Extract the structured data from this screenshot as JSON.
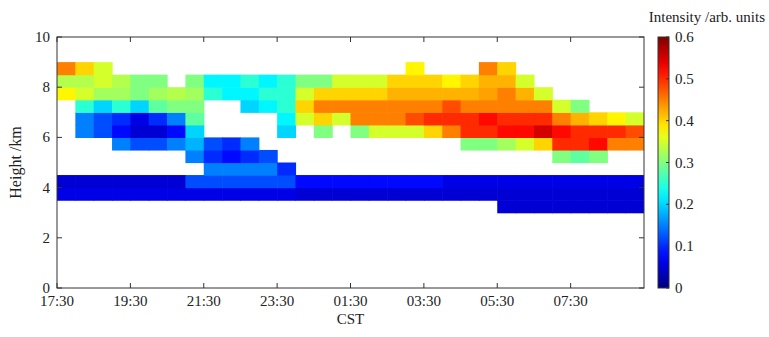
{
  "chart_data": {
    "type": "heatmap",
    "x_label": "CST",
    "y_label": "Height /km",
    "xlim": [
      0,
      16
    ],
    "xticks": [
      {
        "value": 0,
        "label": "17:30"
      },
      {
        "value": 2,
        "label": "19:30"
      },
      {
        "value": 4,
        "label": "21:30"
      },
      {
        "value": 6,
        "label": "23:30"
      },
      {
        "value": 8,
        "label": "01:30"
      },
      {
        "value": 10,
        "label": "03:30"
      },
      {
        "value": 12,
        "label": "05:30"
      },
      {
        "value": 14,
        "label": "07:30"
      }
    ],
    "ylim": [
      0,
      10
    ],
    "yticks": [
      0,
      2,
      4,
      6,
      8,
      10
    ],
    "xbins": [
      0,
      0.5,
      1,
      1.5,
      2,
      2.5,
      3,
      3.5,
      4,
      4.5,
      5,
      5.5,
      6,
      6.5,
      7,
      7.5,
      8,
      8.5,
      9,
      9.5,
      10,
      10.5,
      11,
      11.5,
      12,
      12.5,
      13,
      13.5,
      14,
      14.5,
      15,
      15.5,
      16
    ],
    "ybins": [
      3,
      3.5,
      4,
      4.5,
      5,
      5.5,
      6,
      6.5,
      7,
      7.5,
      8,
      8.5,
      9
    ],
    "cells": [
      [
        null,
        null,
        null,
        null,
        null,
        null,
        null,
        null,
        null,
        null,
        null,
        null,
        null,
        null,
        null,
        null,
        null,
        null,
        null,
        null,
        null,
        null,
        null,
        null,
        0.05,
        0.05,
        0.05,
        0.05,
        0.05,
        0.05,
        0.05,
        0.05
      ],
      [
        0.06,
        0.06,
        0.06,
        0.06,
        0.06,
        0.06,
        0.06,
        0.06,
        0.06,
        0.06,
        0.06,
        0.06,
        0.06,
        0.05,
        0.05,
        0.05,
        0.05,
        0.05,
        0.05,
        0.05,
        0.05,
        0.05,
        0.05,
        0.05,
        0.05,
        0.05,
        0.05,
        0.05,
        0.05,
        0.05,
        0.05,
        0.05
      ],
      [
        0.05,
        0.05,
        0.05,
        0.05,
        0.05,
        0.05,
        0.05,
        0.12,
        0.12,
        0.12,
        0.12,
        0.12,
        0.12,
        0.08,
        0.08,
        0.08,
        0.08,
        0.08,
        0.08,
        0.08,
        0.08,
        0.06,
        0.06,
        0.06,
        0.06,
        0.06,
        0.06,
        0.06,
        0.06,
        0.06,
        0.06,
        0.06
      ],
      [
        null,
        null,
        null,
        null,
        null,
        null,
        null,
        null,
        0.15,
        0.15,
        0.15,
        0.15,
        0.1,
        null,
        null,
        null,
        null,
        null,
        null,
        null,
        null,
        null,
        null,
        null,
        null,
        null,
        null,
        null,
        null,
        null,
        null,
        null
      ],
      [
        null,
        null,
        null,
        null,
        null,
        null,
        null,
        0.15,
        0.1,
        0.08,
        0.1,
        0.12,
        null,
        null,
        null,
        null,
        null,
        null,
        null,
        null,
        null,
        null,
        null,
        null,
        null,
        null,
        null,
        0.3,
        0.28,
        0.3,
        null,
        null
      ],
      [
        null,
        null,
        null,
        0.15,
        0.12,
        0.12,
        0.15,
        0.18,
        0.12,
        0.1,
        0.15,
        null,
        null,
        null,
        null,
        null,
        null,
        null,
        null,
        null,
        null,
        null,
        0.3,
        0.3,
        0.32,
        0.35,
        0.4,
        0.5,
        0.5,
        0.52,
        0.45,
        0.45
      ],
      [
        null,
        0.15,
        0.12,
        0.08,
        0.05,
        0.05,
        0.08,
        0.2,
        null,
        null,
        null,
        null,
        0.2,
        null,
        0.3,
        null,
        0.3,
        0.35,
        0.35,
        0.35,
        0.4,
        0.45,
        0.5,
        0.5,
        0.52,
        0.52,
        0.55,
        0.52,
        0.5,
        0.5,
        0.5,
        0.48
      ],
      [
        null,
        0.15,
        0.12,
        0.1,
        0.06,
        0.1,
        0.15,
        0.28,
        null,
        null,
        null,
        null,
        0.22,
        0.35,
        0.4,
        0.35,
        0.45,
        0.45,
        0.45,
        0.48,
        0.5,
        0.5,
        0.5,
        0.52,
        0.5,
        0.5,
        0.5,
        0.45,
        0.42,
        0.4,
        0.38,
        0.35
      ],
      [
        null,
        0.25,
        0.2,
        0.25,
        0.2,
        0.28,
        0.3,
        0.3,
        null,
        null,
        0.2,
        0.22,
        0.25,
        0.4,
        0.45,
        0.45,
        0.45,
        0.45,
        0.45,
        0.45,
        0.45,
        0.48,
        0.45,
        0.45,
        0.45,
        0.45,
        0.45,
        0.35,
        0.3,
        null,
        null,
        null
      ],
      [
        0.38,
        0.35,
        0.32,
        0.32,
        0.3,
        0.32,
        0.33,
        0.32,
        0.25,
        0.22,
        0.22,
        0.25,
        0.25,
        0.35,
        0.4,
        0.4,
        0.4,
        0.4,
        0.42,
        0.42,
        0.42,
        0.42,
        0.42,
        0.43,
        0.45,
        0.42,
        0.35,
        null,
        null,
        null,
        null,
        null
      ],
      [
        0.33,
        0.33,
        0.35,
        0.33,
        0.3,
        0.3,
        null,
        0.3,
        0.22,
        0.22,
        0.25,
        0.22,
        0.25,
        0.3,
        0.3,
        0.35,
        0.35,
        0.35,
        0.4,
        0.4,
        0.4,
        0.38,
        0.4,
        0.42,
        0.42,
        0.35,
        null,
        null,
        null,
        null,
        null,
        null
      ],
      [
        0.45,
        0.4,
        0.35,
        null,
        null,
        null,
        null,
        null,
        null,
        null,
        null,
        null,
        null,
        null,
        null,
        null,
        null,
        null,
        null,
        0.38,
        null,
        null,
        null,
        0.45,
        0.4,
        null,
        null,
        null,
        null,
        null,
        null,
        null
      ]
    ],
    "colorbar": {
      "label": "Intensity /arb. units",
      "range": [
        0,
        0.6
      ],
      "ticks": [
        0,
        0.1,
        0.2,
        0.3,
        0.4,
        0.5,
        0.6
      ]
    }
  }
}
